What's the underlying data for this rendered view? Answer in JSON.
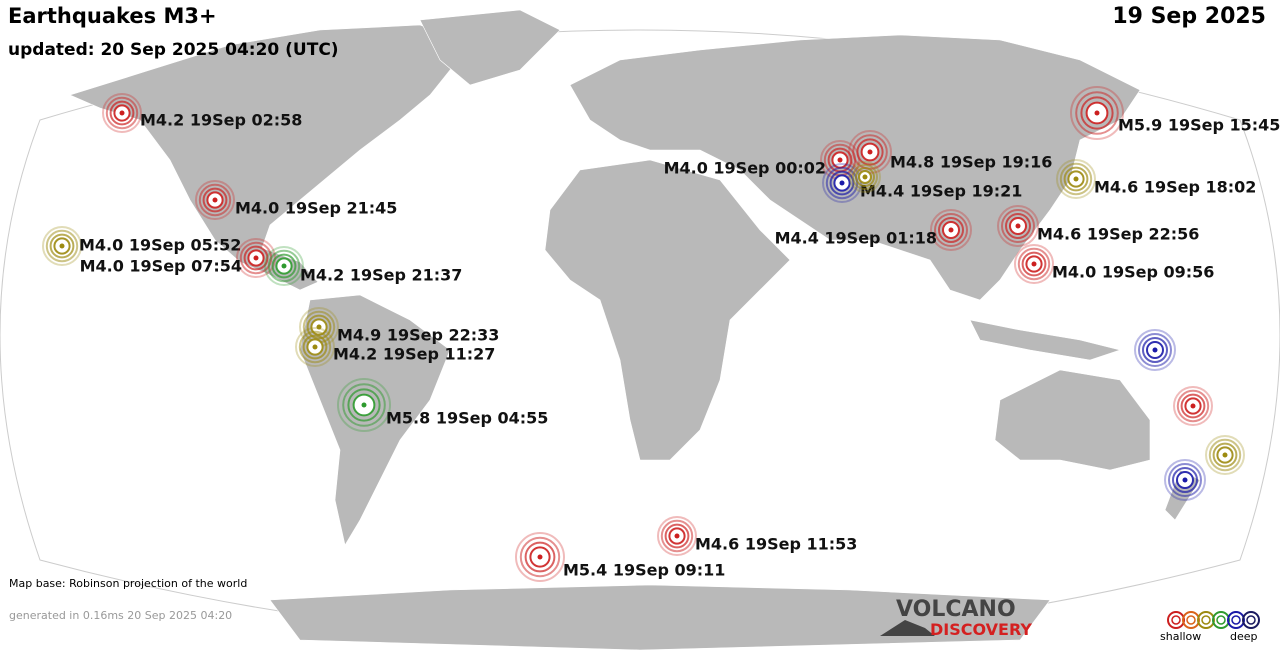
{
  "header": {
    "title": "Earthquakes M3+",
    "updated": "updated: 20 Sep 2025 04:20 (UTC)",
    "date": "19 Sep 2025"
  },
  "quakes": [
    {
      "label": "M4.2 19Sep 02:58",
      "color": "#cc1f1f"
    },
    {
      "label": "M4.0 19Sep 21:45",
      "color": "#cc1f1f"
    },
    {
      "label": "M4.0 19Sep 05:52",
      "color": "#9c8a10"
    },
    {
      "label": "M4.0 19Sep 07:54",
      "color": "#cc1f1f"
    },
    {
      "label": "M4.2 19Sep 21:37",
      "color": "#2e9a2e"
    },
    {
      "label": "M4.9 19Sep 22:33",
      "color": "#9c8a10"
    },
    {
      "label": "M4.2 19Sep 11:27",
      "color": "#9c8a10"
    },
    {
      "label": "M5.8 19Sep 04:55",
      "color": "#2e9a2e"
    },
    {
      "label": "M5.4 19Sep 09:11",
      "color": "#cc1f1f"
    },
    {
      "label": "M4.6 19Sep 11:53",
      "color": "#cc1f1f"
    },
    {
      "label": "M4.0 19Sep 00:02",
      "color": "#cc1f1f"
    },
    {
      "label": "M4.8 19Sep 19:16",
      "color": "#cc1f1f"
    },
    {
      "label": "M4.4 19Sep 19:21",
      "color": "#1a1aa8"
    },
    {
      "label": "M4.4 19Sep 01:18",
      "color": "#cc1f1f"
    },
    {
      "label": "M4.6 19Sep 22:56",
      "color": "#cc1f1f"
    },
    {
      "label": "M4.0 19Sep 09:56",
      "color": "#cc1f1f"
    },
    {
      "label": "M5.9 19Sep 15:45",
      "color": "#cc1f1f"
    },
    {
      "label": "M4.6 19Sep 18:02",
      "color": "#9c8a10"
    },
    {
      "color": "#9c8a10"
    },
    {
      "color": "#1a1aa8"
    },
    {
      "color": "#cc1f1f"
    },
    {
      "color": "#9c8a10"
    },
    {
      "color": "#1a1aa8"
    }
  ],
  "footer": {
    "map_base": "Map base: Robinson projection of the world",
    "generated": "generated in 0.16ms 20 Sep 2025 04:20"
  },
  "logo": {
    "line1": "VOLCANO",
    "line2": "DISCOVERY"
  },
  "legend": {
    "shallow": "shallow",
    "deep": "deep",
    "colors": [
      "#cc1f1f",
      "#d9631a",
      "#9c8a10",
      "#2e9a2e",
      "#1a1aa8",
      "#1a1a60"
    ]
  }
}
